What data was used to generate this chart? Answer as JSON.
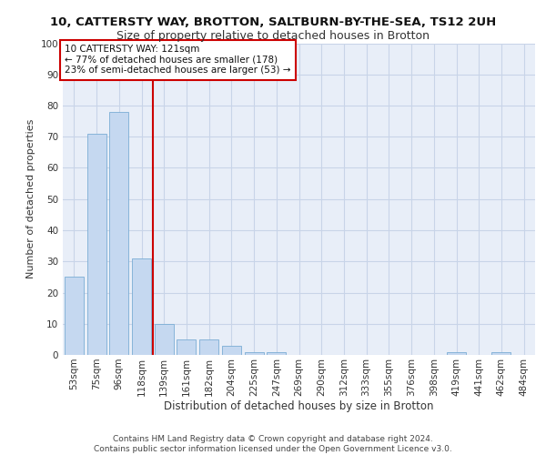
{
  "title1": "10, CATTERSTY WAY, BROTTON, SALTBURN-BY-THE-SEA, TS12 2UH",
  "title2": "Size of property relative to detached houses in Brotton",
  "xlabel": "Distribution of detached houses by size in Brotton",
  "ylabel": "Number of detached properties",
  "categories": [
    "53sqm",
    "75sqm",
    "96sqm",
    "118sqm",
    "139sqm",
    "161sqm",
    "182sqm",
    "204sqm",
    "225sqm",
    "247sqm",
    "269sqm",
    "290sqm",
    "312sqm",
    "333sqm",
    "355sqm",
    "376sqm",
    "398sqm",
    "419sqm",
    "441sqm",
    "462sqm",
    "484sqm"
  ],
  "values": [
    25,
    71,
    78,
    31,
    10,
    5,
    5,
    3,
    1,
    1,
    0,
    0,
    0,
    0,
    0,
    0,
    0,
    1,
    0,
    1,
    0
  ],
  "bar_color": "#c5d8f0",
  "bar_edge_color": "#7aadd4",
  "red_line_index": 3,
  "annotation_text": "10 CATTERSTY WAY: 121sqm\n← 77% of detached houses are smaller (178)\n23% of semi-detached houses are larger (53) →",
  "annotation_box_color": "#ffffff",
  "annotation_box_edge_color": "#cc0000",
  "ylim": [
    0,
    100
  ],
  "yticks": [
    0,
    10,
    20,
    30,
    40,
    50,
    60,
    70,
    80,
    90,
    100
  ],
  "grid_color": "#c8d4e8",
  "background_color": "#e8eef8",
  "footer_text": "Contains HM Land Registry data © Crown copyright and database right 2024.\nContains public sector information licensed under the Open Government Licence v3.0.",
  "title1_fontsize": 9.5,
  "title2_fontsize": 9,
  "xlabel_fontsize": 8.5,
  "ylabel_fontsize": 8,
  "tick_fontsize": 7.5,
  "annotation_fontsize": 7.5,
  "footer_fontsize": 6.5
}
